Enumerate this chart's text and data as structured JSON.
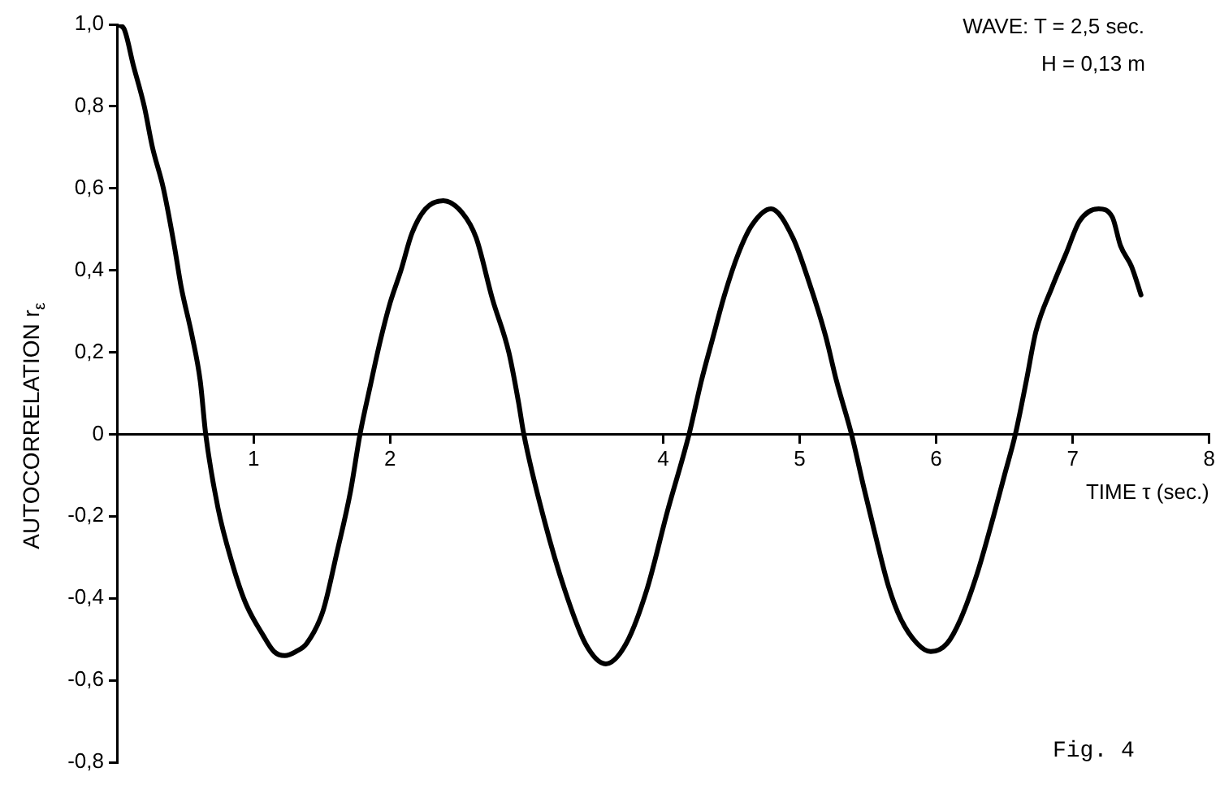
{
  "chart_data": {
    "type": "line",
    "xlabel": "TIME τ (sec.)",
    "ylabel": "AUTOCORRELATION r$_{ε}$",
    "annotations": [
      "WAVE: T = 2,5 sec.",
      "H = 0,13 m",
      "Fig. 4"
    ],
    "x": [
      0,
      0.05,
      0.12,
      0.2,
      0.26,
      0.34,
      0.42,
      0.47,
      0.55,
      0.61,
      0.65,
      0.74,
      0.84,
      0.94,
      1.07,
      1.15,
      1.23,
      1.31,
      1.39,
      1.51,
      1.61,
      1.71,
      1.78,
      1.85,
      1.93,
      2.0,
      2.08,
      2.16,
      2.26,
      2.39,
      2.53,
      2.63,
      2.75,
      2.87,
      2.94,
      2.98,
      3.13,
      3.28,
      3.43,
      3.58,
      3.73,
      3.88,
      4.03,
      4.19,
      4.28,
      4.36,
      4.45,
      4.55,
      4.65,
      4.79,
      4.95,
      5.07,
      5.19,
      5.27,
      5.38,
      5.47,
      5.55,
      5.65,
      5.74,
      5.86,
      5.96,
      6.08,
      6.18,
      6.3,
      6.42,
      6.5,
      6.58,
      6.66,
      6.73,
      6.85,
      6.95,
      7.05,
      7.19,
      7.29,
      7.35,
      7.43,
      7.5
    ],
    "values": [
      1.0,
      0.99,
      0.9,
      0.8,
      0.7,
      0.6,
      0.46,
      0.36,
      0.24,
      0.13,
      0,
      -0.18,
      -0.31,
      -0.41,
      -0.49,
      -0.53,
      -0.54,
      -0.53,
      -0.51,
      -0.43,
      -0.29,
      -0.14,
      0,
      0.11,
      0.23,
      0.32,
      0.4,
      0.49,
      0.55,
      0.57,
      0.54,
      0.48,
      0.33,
      0.2,
      0.08,
      0,
      -0.21,
      -0.38,
      -0.51,
      -0.56,
      -0.51,
      -0.38,
      -0.19,
      0,
      0.13,
      0.23,
      0.34,
      0.44,
      0.51,
      0.55,
      0.48,
      0.37,
      0.24,
      0.13,
      0,
      -0.13,
      -0.24,
      -0.37,
      -0.45,
      -0.51,
      -0.53,
      -0.51,
      -0.45,
      -0.34,
      -0.2,
      -0.1,
      0,
      0.13,
      0.25,
      0.36,
      0.44,
      0.52,
      0.55,
      0.53,
      0.46,
      0.41,
      0.34
    ],
    "color": "#000000",
    "xlim": [
      0,
      8
    ],
    "ylim": [
      -0.8,
      1.0
    ],
    "xticks": [
      1,
      2,
      4,
      5,
      6,
      7,
      8
    ],
    "yticks": [
      {
        "value": 1.0,
        "label": "1,0"
      },
      {
        "value": 0.8,
        "label": "0,8"
      },
      {
        "value": 0.6,
        "label": "0,6"
      },
      {
        "value": 0.4,
        "label": "0,4"
      },
      {
        "value": 0.2,
        "label": "0,2"
      },
      {
        "value": 0,
        "label": "0"
      },
      {
        "value": -0.2,
        "label": "-0,2"
      },
      {
        "value": -0.4,
        "label": "-0,4"
      },
      {
        "value": -0.6,
        "label": "-0,6"
      },
      {
        "value": -0.8,
        "label": "-0,8"
      }
    ]
  }
}
